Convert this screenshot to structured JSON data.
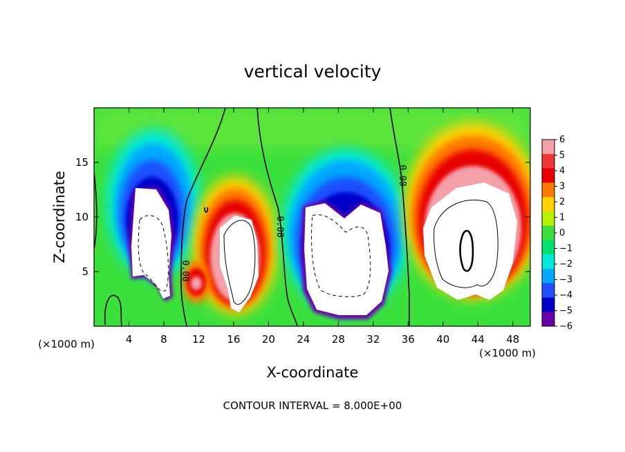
{
  "chart_data": {
    "type": "heatmap",
    "title": "vertical velocity",
    "xlabel": "X-coordinate",
    "ylabel": "Z-coordinate",
    "x_unit_label": "(×1000 m)",
    "x_ticks": [
      4,
      8,
      12,
      16,
      20,
      24,
      28,
      32,
      36,
      40,
      44,
      48
    ],
    "y_ticks": [
      5,
      10,
      15
    ],
    "xlim": [
      0,
      50
    ],
    "ylim": [
      0,
      20
    ],
    "footer": "CONTOUR INTERVAL = 8.000E+00",
    "contour_label": "0.00",
    "colorbar": {
      "ticks": [
        "6",
        "5",
        "4",
        "3",
        "2",
        "1",
        "0",
        "−1",
        "−2",
        "−3",
        "−4",
        "−5",
        "−6"
      ],
      "min": -6,
      "max": 6,
      "colors": [
        "#f4a0a8",
        "#f03838",
        "#e80000",
        "#ff7a00",
        "#ffd200",
        "#b8f000",
        "#3ce03c",
        "#00e070",
        "#00e8d8",
        "#00a8ff",
        "#1e50ff",
        "#0000c8",
        "#6a00a8"
      ]
    },
    "cells": [
      {
        "x": 6,
        "z": 8,
        "w": -6
      },
      {
        "x": 16.5,
        "z": 7,
        "w": 6
      },
      {
        "x": 11,
        "z": 3.5,
        "w": 5
      },
      {
        "x": 28,
        "z": 7,
        "w": -6
      },
      {
        "x": 42.5,
        "z": 7.5,
        "w": 6
      }
    ]
  }
}
